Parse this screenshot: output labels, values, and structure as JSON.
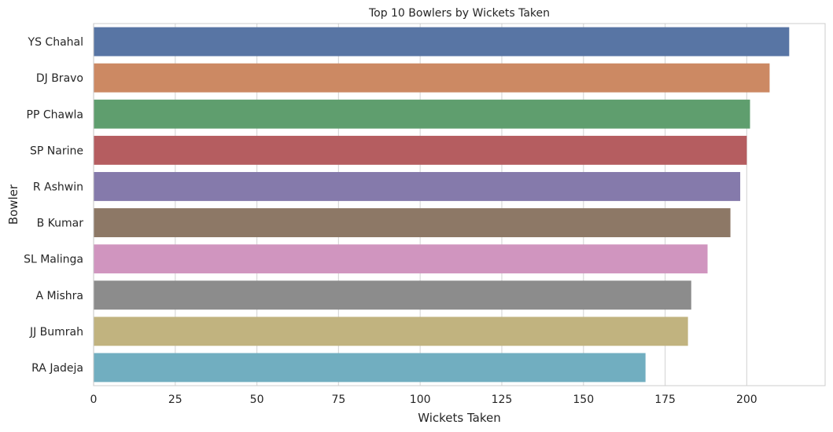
{
  "chart_data": {
    "type": "bar",
    "orientation": "horizontal",
    "title": "Top 10 Bowlers by Wickets Taken",
    "xlabel": "Wickets Taken",
    "ylabel": "Bowler",
    "categories": [
      "YS Chahal",
      "DJ Bravo",
      "PP Chawla",
      "SP Narine",
      "R Ashwin",
      "B Kumar",
      "SL Malinga",
      "A Mishra",
      "JJ Bumrah",
      "RA Jadeja"
    ],
    "values": [
      213,
      207,
      201,
      200,
      198,
      195,
      188,
      183,
      182,
      169
    ],
    "colors": [
      "#5875a4",
      "#cc8963",
      "#5f9e6e",
      "#b55d60",
      "#857aab",
      "#8d7866",
      "#d095bf",
      "#8c8c8c",
      "#c1b37f",
      "#71aec0"
    ],
    "xlim": [
      0,
      224
    ],
    "xticks": [
      0,
      25,
      50,
      75,
      100,
      125,
      150,
      175,
      200
    ],
    "grid": true,
    "legend": "none"
  }
}
